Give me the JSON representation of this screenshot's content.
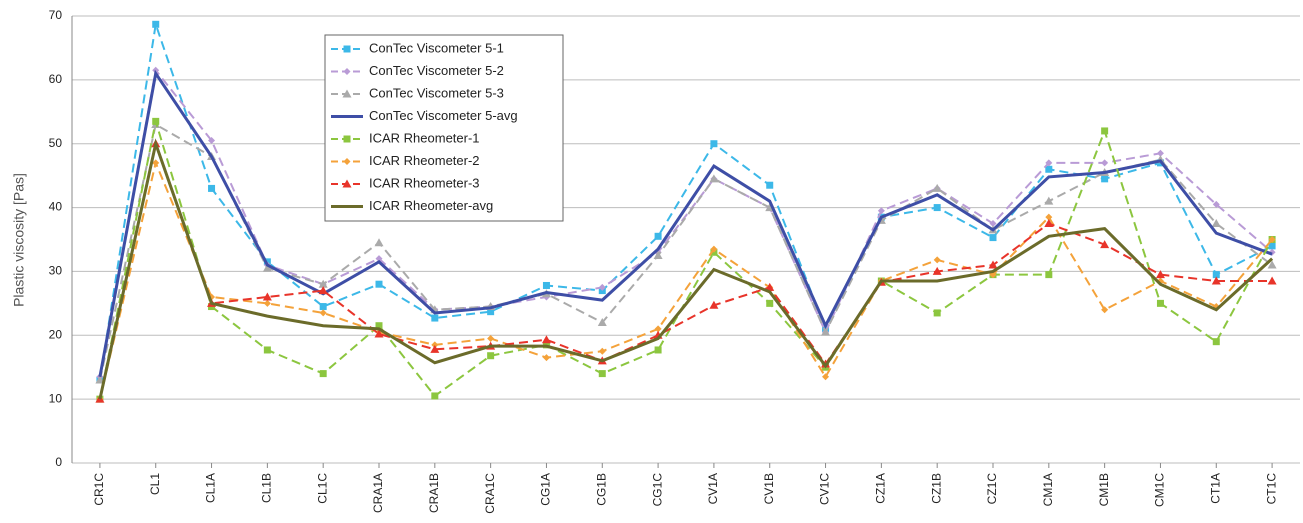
{
  "chart_data": {
    "type": "line",
    "y_label": "Plastic viscosity [Pas]",
    "categories": [
      "CR1C",
      "CL1",
      "CL1A",
      "CL1B",
      "CL1C",
      "CRA1A",
      "CRA1B",
      "CRA1C",
      "CG1A",
      "CG1B",
      "CG1C",
      "CV1A",
      "CV1B",
      "CV1C",
      "CZ1A",
      "CZ1B",
      "CZ1C",
      "CM1A",
      "CM1B",
      "CM1C",
      "CT1A",
      "CT1C"
    ],
    "ylim": [
      0,
      70
    ],
    "yticks": [
      0,
      10,
      20,
      30,
      40,
      50,
      60,
      70
    ],
    "grid": true,
    "legend": "top-left",
    "series": [
      {
        "name": "ConTec Viscometer 5-1",
        "color": "#3cb8e8",
        "dash": true,
        "marker": "square",
        "values": [
          13,
          68.7,
          43,
          31.5,
          24.5,
          28,
          22.7,
          23.7,
          27.8,
          27,
          35.5,
          50,
          43.5,
          21,
          38.5,
          40,
          35.3,
          46,
          44.5,
          47,
          29.5,
          34
        ]
      },
      {
        "name": "ConTec Viscometer 5-2",
        "color": "#b99bd6",
        "dash": true,
        "marker": "diamond",
        "values": [
          13.5,
          61.5,
          50.5,
          31,
          28,
          32,
          24,
          24.5,
          26,
          27.5,
          33,
          44.5,
          40,
          20.5,
          39.5,
          43,
          37.5,
          47,
          47,
          48.5,
          40.5,
          33
        ]
      },
      {
        "name": "ConTec Viscometer 5-3",
        "color": "#aaaaaa",
        "dash": true,
        "marker": "triangle",
        "values": [
          13,
          53,
          48,
          30.5,
          28,
          34.5,
          24,
          24.5,
          26.5,
          22,
          32.5,
          44.5,
          40,
          20.5,
          38,
          43,
          36.5,
          41,
          45.5,
          47.5,
          37.5,
          31
        ]
      },
      {
        "name": "ConTec Viscometer 5-avg",
        "color": "#3e4ea6",
        "dash": false,
        "marker": "none",
        "values": [
          13.5,
          61,
          48,
          31,
          26.5,
          31.5,
          23.5,
          24.3,
          26.7,
          25.5,
          33.5,
          46.5,
          41,
          21.5,
          38.5,
          42,
          36.5,
          44.8,
          45.5,
          47.3,
          36,
          32.7
        ]
      },
      {
        "name": "ICAR Rheometer-1",
        "color": "#8cc63f",
        "dash": true,
        "marker": "square",
        "values": [
          10,
          53.5,
          24.5,
          17.7,
          14,
          21.5,
          10.5,
          16.8,
          18.5,
          14,
          17.7,
          33,
          25,
          15,
          28.5,
          23.5,
          29.5,
          29.5,
          52,
          25,
          19,
          35
        ]
      },
      {
        "name": "ICAR Rheometer-2",
        "color": "#f4a23a",
        "dash": true,
        "marker": "diamond",
        "values": [
          10,
          47,
          26,
          25,
          23.5,
          20.5,
          18.5,
          19.5,
          16.5,
          17.5,
          21,
          33.5,
          27.5,
          13.5,
          28.5,
          31.8,
          29.5,
          38.5,
          24,
          28.5,
          24.5,
          35
        ]
      },
      {
        "name": "ICAR Rheometer-3",
        "color": "#e8342a",
        "dash": true,
        "marker": "triangle",
        "values": [
          10,
          50,
          25,
          26,
          27,
          20.2,
          17.8,
          18.3,
          19.3,
          16,
          20,
          24.7,
          27.5,
          15.5,
          28.3,
          30,
          31,
          37.5,
          34.2,
          29.5,
          28.5,
          28.5
        ]
      },
      {
        "name": "ICAR Rheometer-avg",
        "color": "#6b6b2a",
        "dash": false,
        "marker": "none",
        "values": [
          10,
          50,
          25,
          23,
          21.5,
          21,
          15.7,
          18.3,
          18.3,
          16,
          19.5,
          30.3,
          26.8,
          15.2,
          28.5,
          28.5,
          30,
          35.5,
          36.7,
          28,
          24,
          32
        ]
      }
    ]
  }
}
